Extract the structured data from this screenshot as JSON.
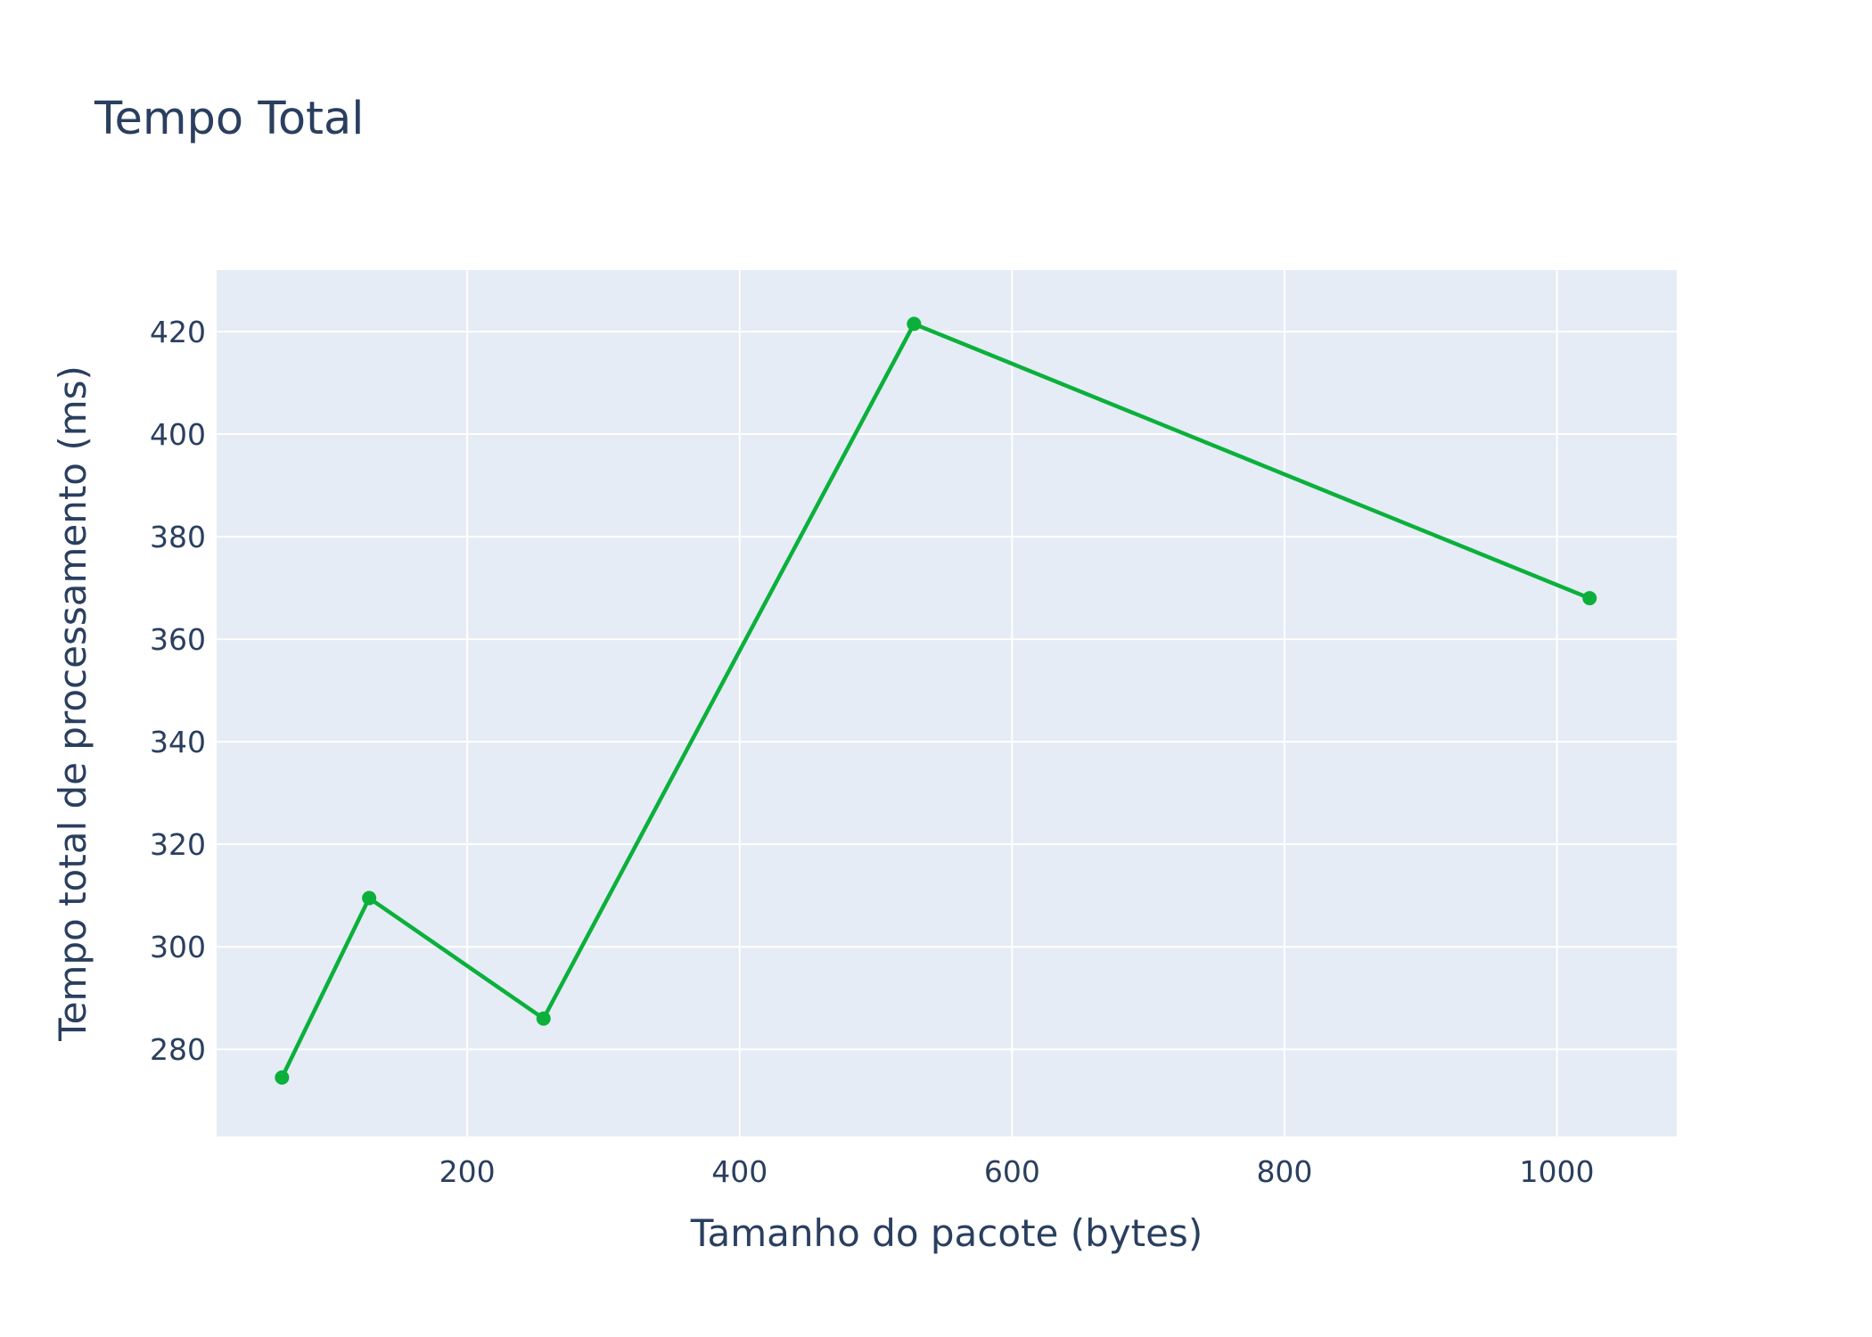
{
  "chart_data": {
    "type": "line",
    "title": "Tempo Total",
    "xlabel": "Tamanho do pacote (bytes)",
    "ylabel": "Tempo total de processamento (ms)",
    "xlim": [
      16,
      1088
    ],
    "ylim": [
      263,
      432
    ],
    "xticks": [
      200,
      400,
      600,
      800,
      1000
    ],
    "yticks": [
      280,
      300,
      320,
      340,
      360,
      380,
      400,
      420
    ],
    "grid": true,
    "legend": "none",
    "series": [
      {
        "color": "#0bb03b",
        "x": [
          64,
          128,
          256,
          528,
          1024
        ],
        "y": [
          274.5,
          309.5,
          286,
          421.5,
          368
        ]
      }
    ],
    "colors": {
      "plot_background": "#e5ecf6",
      "grid": "#ffffff",
      "text": "#2a3f5f",
      "line": "#0bb03b"
    }
  }
}
